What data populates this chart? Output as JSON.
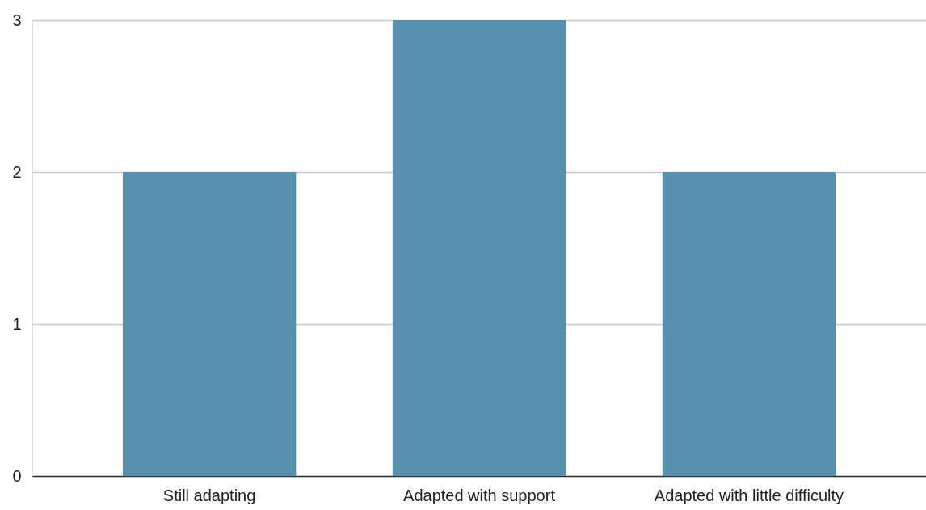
{
  "chart_data": {
    "type": "bar",
    "categories": [
      "Still adapting",
      "Adapted with support",
      "Adapted with little difficulty"
    ],
    "values": [
      2,
      3,
      2
    ],
    "color": "#5891ae",
    "ylim": [
      0,
      3
    ],
    "yticks": [
      0,
      1,
      2,
      3
    ],
    "grid": "y"
  }
}
